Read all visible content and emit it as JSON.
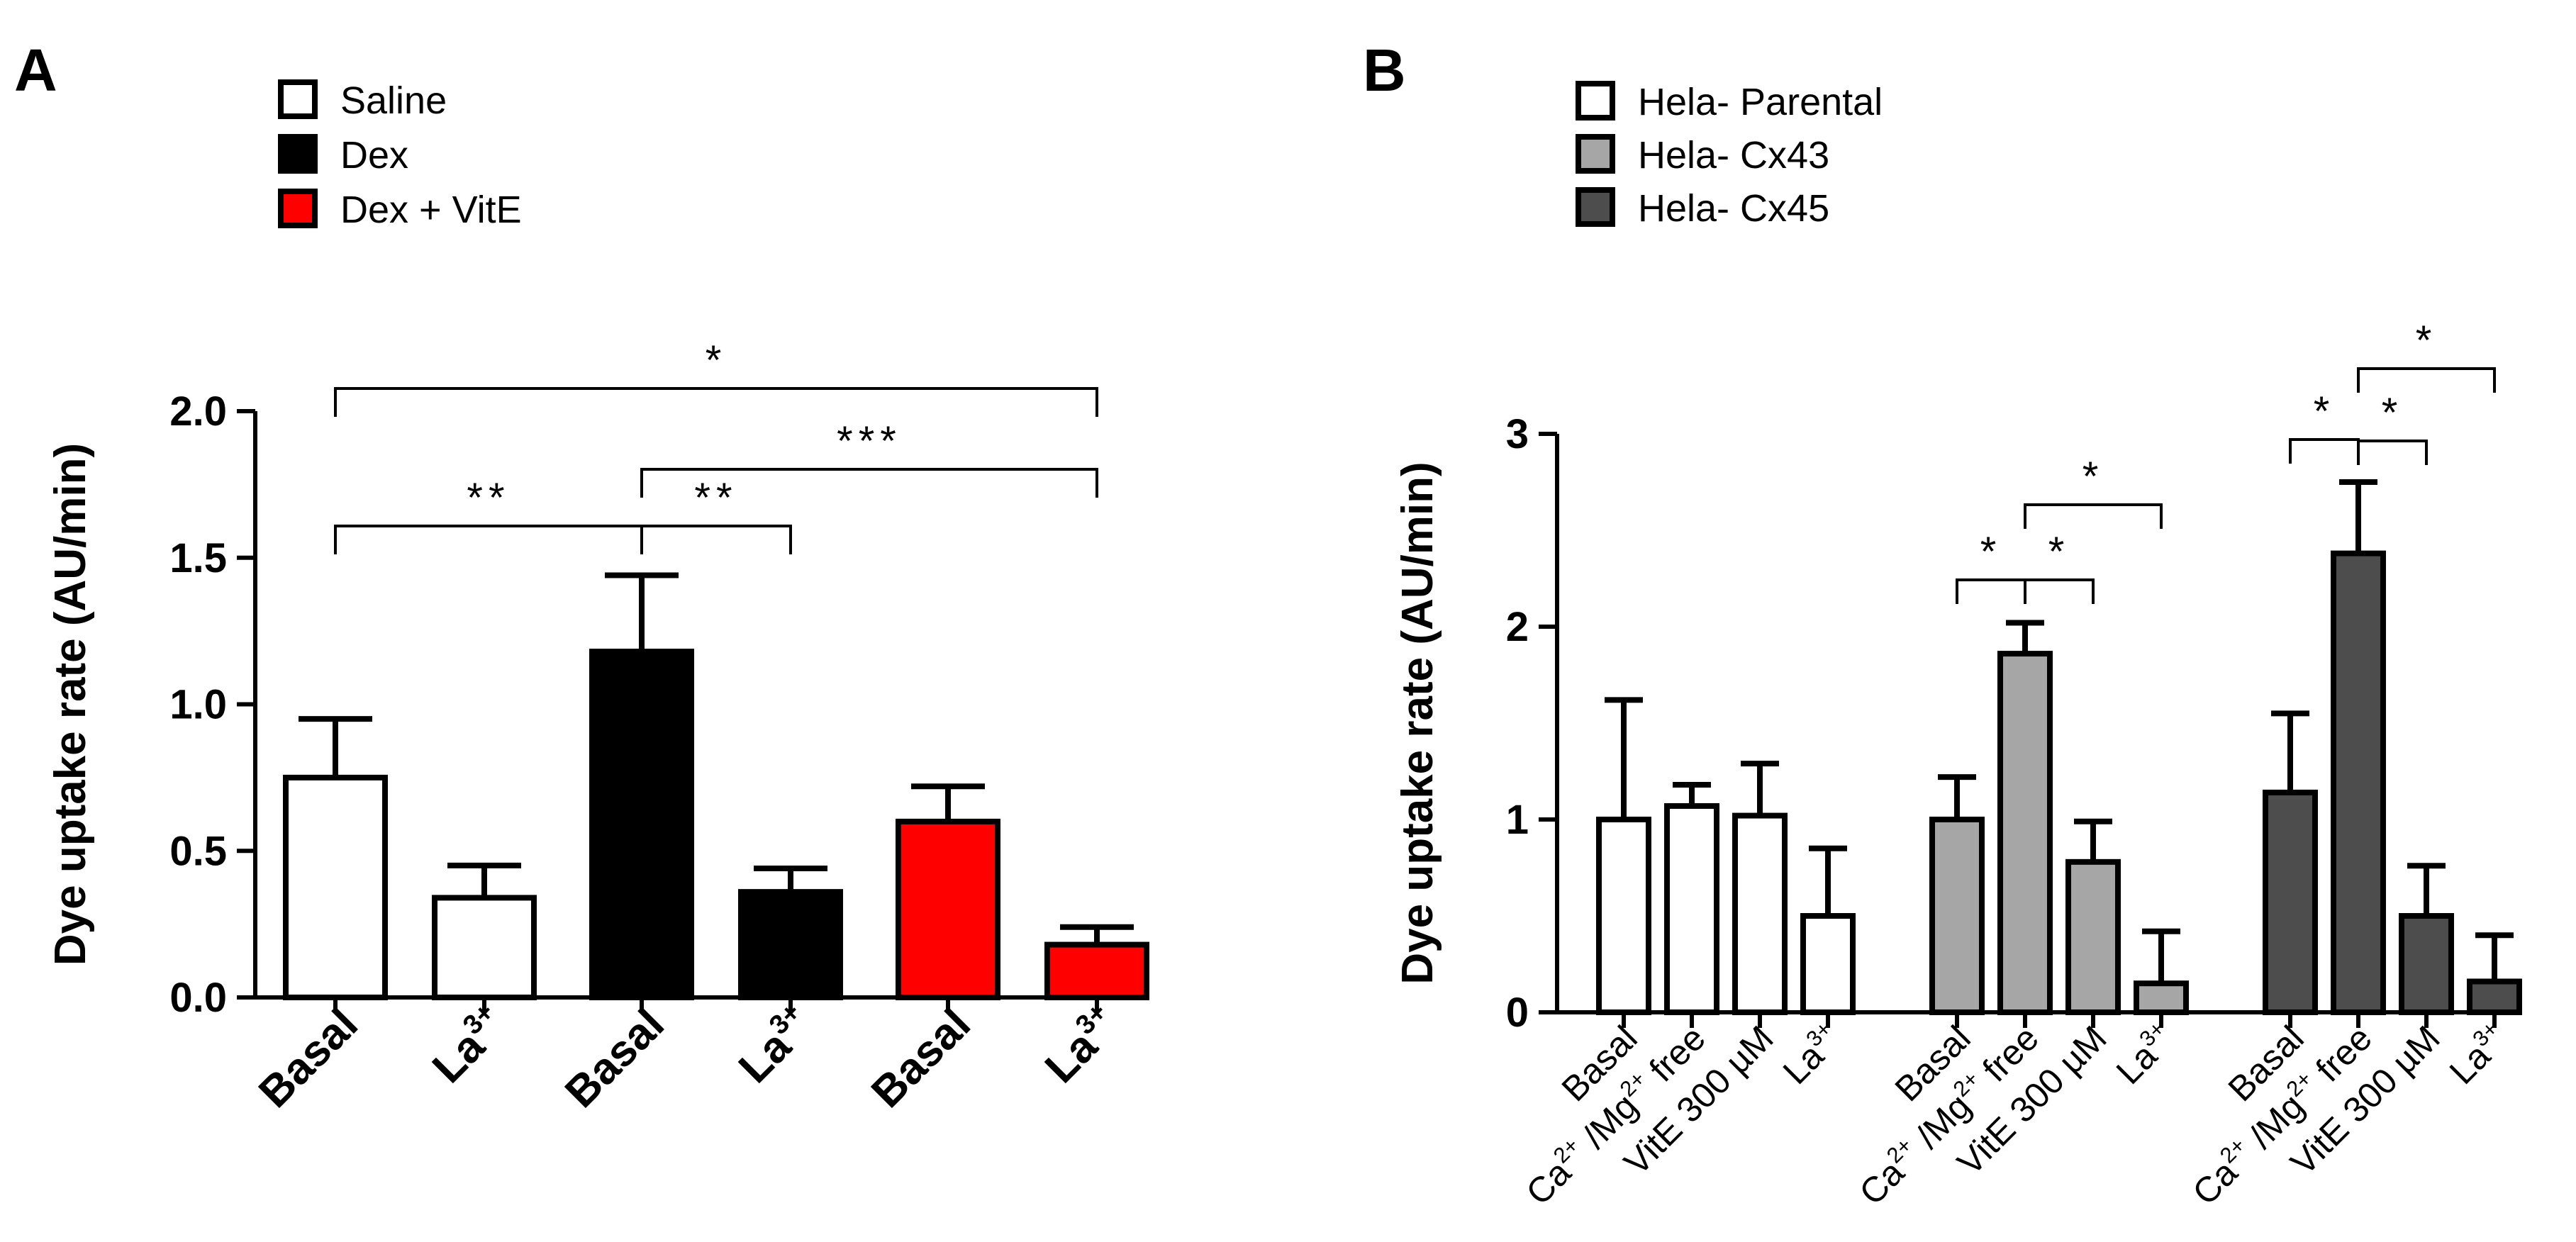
{
  "chart_data": [
    {
      "type": "bar",
      "panel_label": "A",
      "ylabel": "Dye uptake rate (AU/min)",
      "ylim": [
        0,
        2.0
      ],
      "yticks": [
        "0.0",
        "0.5",
        "1.0",
        "1.5",
        "2.0"
      ],
      "legend_placement": "top-left",
      "legend": [
        {
          "label": "Saline",
          "color": "#ffffff"
        },
        {
          "label": "Dex",
          "color": "#000000"
        },
        {
          "label": "Dex + VitE",
          "color": "#ff0000"
        }
      ],
      "groups": [
        {
          "name": "Saline",
          "color": "#ffffff",
          "categories": [
            "Basal",
            "La"
          ],
          "values": [
            0.75,
            0.34
          ],
          "errors": [
            0.2,
            0.11
          ]
        },
        {
          "name": "Dex",
          "color": "#000000",
          "categories": [
            "Basal",
            "La"
          ],
          "values": [
            1.18,
            0.36
          ],
          "errors": [
            0.26,
            0.08
          ]
        },
        {
          "name": "Dex + VitE",
          "color": "#ff0000",
          "categories": [
            "Basal",
            "La"
          ],
          "values": [
            0.6,
            0.18
          ],
          "errors": [
            0.12,
            0.06
          ]
        }
      ],
      "tick_labels": [
        {
          "base": "Basal",
          "sup": ""
        },
        {
          "base": "La",
          "sup": "3+"
        },
        {
          "base": "Basal",
          "sup": ""
        },
        {
          "base": "La",
          "sup": "3+"
        },
        {
          "base": "Basal",
          "sup": ""
        },
        {
          "base": "La",
          "sup": "3+"
        }
      ],
      "significance": [
        {
          "from": 0,
          "to": 2,
          "label": "**"
        },
        {
          "from": 2,
          "to": 3,
          "label": "**"
        },
        {
          "from": 2,
          "to": 5,
          "label": "***"
        },
        {
          "from": 0,
          "to": 5,
          "label": "*"
        }
      ]
    },
    {
      "type": "bar",
      "panel_label": "B",
      "ylabel": "Dye uptake rate (AU/min)",
      "ylim": [
        0,
        3
      ],
      "yticks": [
        "0",
        "1",
        "2",
        "3"
      ],
      "legend_placement": "top-left",
      "legend": [
        {
          "label": "Hela- Parental",
          "color": "#ffffff"
        },
        {
          "label": "Hela- Cx43",
          "color": "#a6a6a6"
        },
        {
          "label": "Hela- Cx45",
          "color": "#4d4d4d"
        }
      ],
      "groups": [
        {
          "name": "Hela- Parental",
          "color": "#ffffff",
          "values": [
            1.0,
            1.07,
            1.02,
            0.5
          ],
          "errors": [
            0.62,
            0.11,
            0.27,
            0.35
          ]
        },
        {
          "name": "Hela- Cx43",
          "color": "#a6a6a6",
          "values": [
            1.0,
            1.86,
            0.78,
            0.15
          ],
          "errors": [
            0.22,
            0.16,
            0.21,
            0.27
          ]
        },
        {
          "name": "Hela- Cx45",
          "color": "#4d4d4d",
          "values": [
            1.14,
            2.38,
            0.5,
            0.16
          ],
          "errors": [
            0.41,
            0.37,
            0.26,
            0.24
          ]
        }
      ],
      "tick_labels": [
        {
          "base": "Basal",
          "sup": ""
        },
        {
          "base": "Ca",
          "sup": "2+",
          "mid": " /Mg",
          "sup2": "2+",
          "tail": " free"
        },
        {
          "base": "VitE 300 µM",
          "sup": ""
        },
        {
          "base": "La",
          "sup": "3+"
        }
      ],
      "significance": [
        {
          "from": 4,
          "to": 5,
          "label": "*"
        },
        {
          "from": 5,
          "to": 6,
          "label": "*"
        },
        {
          "from": 5,
          "to": 7,
          "label": "*"
        },
        {
          "from": 8,
          "to": 9,
          "label": "*"
        },
        {
          "from": 9,
          "to": 10,
          "label": "*"
        },
        {
          "from": 9,
          "to": 11,
          "label": "*"
        }
      ]
    }
  ]
}
